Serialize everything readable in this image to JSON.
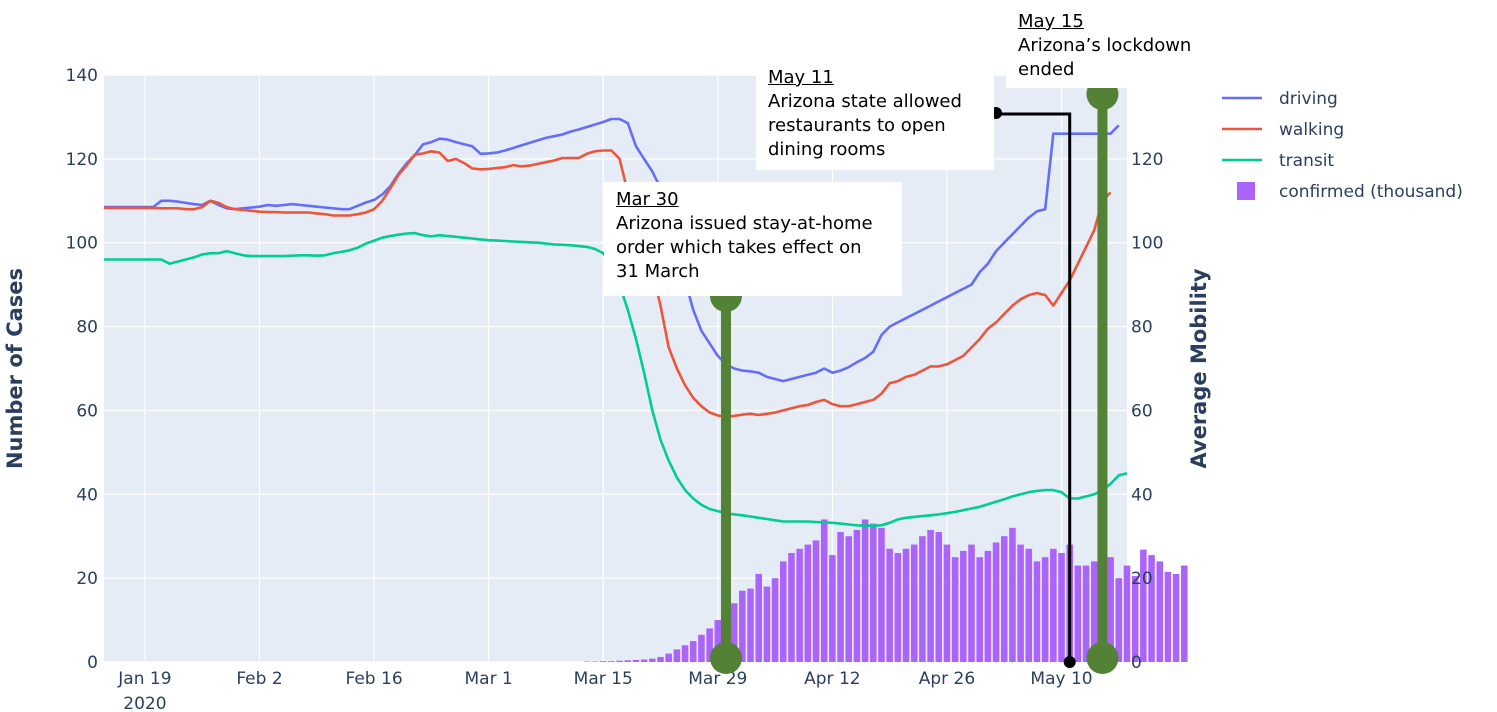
{
  "chart_data": {
    "type": "bar+line",
    "x_start": "2020-01-14",
    "x_ticks": [
      "Jan 19",
      "Feb 2",
      "Feb 16",
      "Mar 1",
      "Mar 15",
      "Mar 29",
      "Apr 12",
      "Apr 26",
      "May 10"
    ],
    "x_tick_year": "2020",
    "x_range": [
      "2020-01-14",
      "2020-05-18"
    ],
    "y_left": {
      "label": "Number of Cases",
      "range": [
        0,
        140
      ],
      "ticks": [
        0,
        20,
        40,
        60,
        80,
        100,
        120,
        140
      ]
    },
    "y_right": {
      "label": "Average Mobility",
      "range": [
        0,
        140
      ],
      "ticks": [
        0,
        20,
        40,
        60,
        80,
        100,
        120,
        140
      ]
    },
    "series": [
      {
        "name": "driving",
        "color": "#636efa",
        "type": "line",
        "values": [
          108.5,
          108.5,
          108.5,
          108.5,
          108.5,
          108.5,
          108.5,
          110,
          110,
          109.8,
          109.5,
          109.2,
          109,
          110,
          109,
          108.2,
          108,
          108.2,
          108.4,
          108.6,
          109,
          108.8,
          109,
          109.2,
          109,
          108.8,
          108.6,
          108.4,
          108.2,
          108,
          108,
          108.8,
          109.6,
          110.2,
          111.5,
          113.5,
          116.5,
          119,
          121,
          123.5,
          124,
          124.8,
          124.6,
          124,
          123.5,
          123,
          121.2,
          121.3,
          121.5,
          122,
          122.6,
          123.2,
          123.8,
          124.4,
          125,
          125.4,
          125.8,
          126.5,
          127,
          127.6,
          128.2,
          128.8,
          129.5,
          129.5,
          128.5,
          123,
          120,
          117,
          113,
          108,
          100,
          91,
          84,
          79,
          76,
          73,
          71,
          70,
          69.5,
          69.3,
          69,
          68,
          67.5,
          67,
          67.5,
          68,
          68.5,
          69,
          70,
          69,
          69.5,
          70.3,
          71.5,
          72.5,
          74,
          78,
          80,
          81,
          82,
          83,
          84,
          85,
          86,
          87,
          88,
          89,
          90,
          93,
          95,
          98,
          100,
          102,
          104,
          106,
          107.5,
          108,
          126,
          126,
          126,
          126,
          126,
          126,
          126,
          126,
          128
        ]
      },
      {
        "name": "walking",
        "color": "#ef553b",
        "type": "line",
        "values": [
          108.3,
          108.3,
          108.3,
          108.3,
          108.3,
          108.3,
          108.3,
          108.2,
          108.2,
          108.2,
          108,
          108,
          108.5,
          110,
          109.5,
          108.5,
          108,
          107.8,
          107.6,
          107.4,
          107.3,
          107.3,
          107.2,
          107.2,
          107.2,
          107.2,
          107,
          106.8,
          106.5,
          106.5,
          106.5,
          106.8,
          107.2,
          108,
          110,
          113,
          116.2,
          118.5,
          121,
          121.3,
          121.8,
          121.5,
          119.5,
          120,
          119,
          117.7,
          117.5,
          117.6,
          117.8,
          118,
          118.5,
          118.2,
          118.4,
          118.8,
          119.2,
          119.6,
          120.2,
          120.2,
          120.2,
          121.2,
          121.8,
          122,
          122,
          120,
          112,
          106,
          100,
          93,
          85,
          75,
          70,
          66,
          63,
          61,
          59.5,
          58.8,
          58.5,
          58.7,
          59,
          59.2,
          58.9,
          59.2,
          59.5,
          60,
          60.5,
          61,
          61.3,
          62,
          62.5,
          61.5,
          61,
          61,
          61.5,
          62,
          62.5,
          64,
          66.5,
          67,
          68,
          68.5,
          69.5,
          70.5,
          70.5,
          71,
          72,
          73,
          75,
          77,
          79.5,
          81,
          83,
          85,
          86.5,
          87.5,
          88,
          87.5,
          85,
          88,
          91,
          95,
          99,
          103,
          110,
          112
        ]
      },
      {
        "name": "transit",
        "color": "#00cc96",
        "type": "line",
        "values": [
          96,
          96,
          96,
          96,
          96,
          96,
          96,
          96,
          95,
          95.5,
          96,
          96.5,
          97.2,
          97.5,
          97.5,
          98,
          97.5,
          97,
          96.8,
          96.8,
          96.8,
          96.8,
          96.8,
          96.9,
          97,
          97,
          96.9,
          97,
          97.5,
          97.8,
          98.2,
          98.8,
          99.8,
          100.5,
          101.2,
          101.6,
          101.9,
          102.2,
          102.3,
          101.8,
          101.5,
          101.8,
          101.6,
          101.4,
          101.2,
          101,
          100.8,
          100.6,
          100.5,
          100.4,
          100.3,
          100.2,
          100.1,
          100,
          99.8,
          99.6,
          99.5,
          99.4,
          99.2,
          99,
          98.5,
          97.5,
          95,
          90,
          84,
          77,
          69,
          60,
          53,
          48,
          44,
          41,
          39,
          37.5,
          36.5,
          36,
          35.5,
          35.2,
          35,
          34.7,
          34.4,
          34.1,
          33.8,
          33.5,
          33.5,
          33.5,
          33.5,
          33.4,
          33.3,
          33.2,
          33,
          32.8,
          32.6,
          32.5,
          32.5,
          32.6,
          33.2,
          34,
          34.4,
          34.6,
          34.8,
          35,
          35.2,
          35.5,
          35.8,
          36.2,
          36.6,
          37,
          37.6,
          38.2,
          38.8,
          39.5,
          40,
          40.5,
          40.8,
          41,
          41,
          40.5,
          39,
          39,
          39.5,
          40,
          41,
          42.5,
          44.5,
          45
        ]
      },
      {
        "name": "confirmed (thousand)",
        "color": "#ab63fa",
        "type": "bar",
        "values": [
          0,
          0,
          0,
          0,
          0,
          0,
          0,
          0,
          0,
          0,
          0,
          0,
          0,
          0,
          0,
          0,
          0,
          0,
          0,
          0,
          0,
          0,
          0,
          0,
          0,
          0,
          0,
          0,
          0,
          0,
          0,
          0,
          0,
          0,
          0,
          0,
          0,
          0,
          0,
          0,
          0,
          0,
          0,
          0,
          0,
          0,
          0,
          0,
          0,
          0,
          0,
          0,
          0,
          0,
          0,
          0,
          0,
          0,
          0,
          0.1,
          0.1,
          0.2,
          0.2,
          0.3,
          0.4,
          0.5,
          0.6,
          0.8,
          1.2,
          2,
          3,
          4,
          5,
          6.5,
          8,
          10,
          12,
          14,
          17,
          17.5,
          21,
          18,
          20,
          24,
          26,
          27,
          28,
          29,
          34,
          25.5,
          31,
          30,
          31.5,
          34,
          33,
          32,
          27,
          26,
          27,
          28,
          30,
          31.5,
          31,
          28,
          25,
          26.5,
          28,
          25,
          26.5,
          28.5,
          30,
          32,
          28,
          27,
          24,
          25,
          27,
          26,
          28,
          23,
          23,
          24,
          28.5,
          25,
          20,
          23,
          20.5,
          26.8,
          25.5,
          24,
          21.5,
          21,
          23
        ]
      }
    ],
    "annotations": [
      {
        "date": "Mar 30",
        "text": "Arizona issued stay-at-home order which takes effect on 31 March",
        "x": "2020-03-30"
      },
      {
        "date": "May 11",
        "text": "Arizona state allowed restaurants to open dining rooms",
        "x": "2020-05-11"
      },
      {
        "date": "May 15",
        "text": "Arizona’s lockdown ended",
        "x": "2020-05-15"
      }
    ],
    "legend_placement": "top-right",
    "grid": true
  }
}
